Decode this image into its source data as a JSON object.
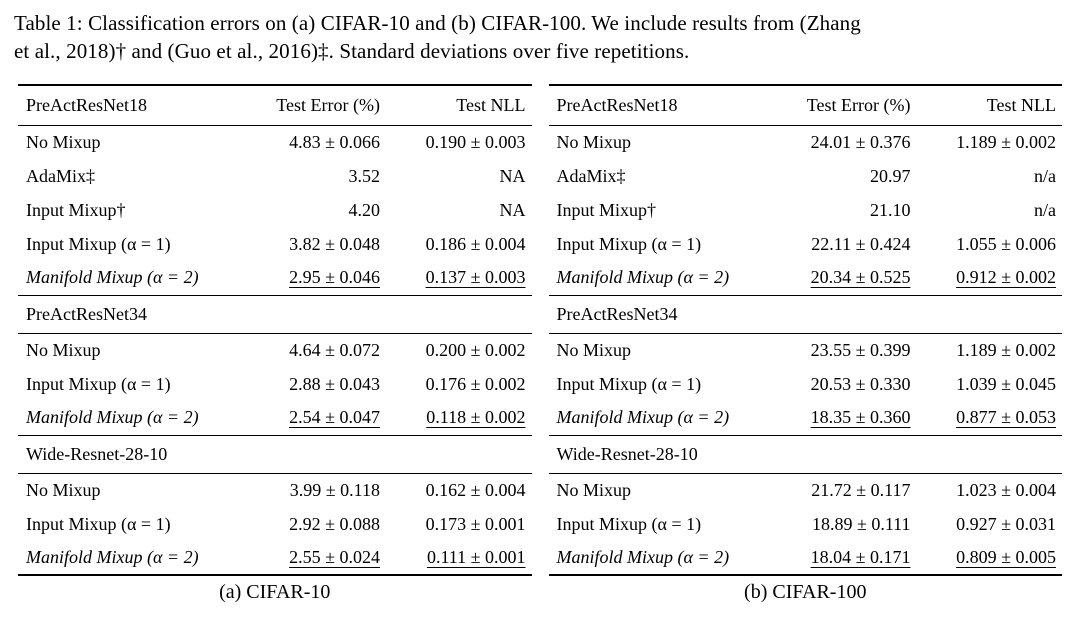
{
  "caption": {
    "line1": "Table 1: Classification errors on (a) CIFAR-10 and (b) CIFAR-100. We include results from (Zhang",
    "line2": "et al., 2018)† and (Guo et al., 2016)‡. Standard deviations over five repetitions."
  },
  "tables": [
    {
      "subcaption": "(a) CIFAR-10",
      "columns": [
        "PreActResNet18",
        "Test Error (%)",
        "Test NLL"
      ],
      "sections": [
        {
          "rows": [
            {
              "method": "No Mixup",
              "error": "4.83 ± 0.066",
              "nll": "0.190 ± 0.003"
            },
            {
              "method": "AdaMix‡",
              "error": "3.52",
              "nll": "NA"
            },
            {
              "method": "Input Mixup†",
              "error": "4.20",
              "nll": "NA"
            },
            {
              "method": "Input Mixup (α = 1)",
              "error": "3.82 ± 0.048",
              "nll": "0.186 ± 0.004"
            },
            {
              "method": "Manifold Mixup (α = 2)",
              "error": "2.95 ± 0.046",
              "nll": "0.137 ± 0.003"
            }
          ]
        },
        {
          "header": "PreActResNet34",
          "rows": [
            {
              "method": "No Mixup",
              "error": "4.64 ± 0.072",
              "nll": "0.200 ± 0.002"
            },
            {
              "method": "Input Mixup (α = 1)",
              "error": "2.88 ± 0.043",
              "nll": "0.176 ± 0.002"
            },
            {
              "method": "Manifold Mixup (α = 2)",
              "error": "2.54 ± 0.047",
              "nll": "0.118 ± 0.002"
            }
          ]
        },
        {
          "header": "Wide-Resnet-28-10",
          "rows": [
            {
              "method": "No Mixup",
              "error": "3.99 ± 0.118",
              "nll": "0.162 ± 0.004"
            },
            {
              "method": "Input Mixup (α = 1)",
              "error": "2.92 ± 0.088",
              "nll": "0.173 ± 0.001"
            },
            {
              "method": "Manifold Mixup (α = 2)",
              "error": "2.55 ± 0.024",
              "nll": "0.111 ± 0.001"
            }
          ]
        }
      ]
    },
    {
      "subcaption": "(b) CIFAR-100",
      "columns": [
        "PreActResNet18",
        "Test Error (%)",
        "Test NLL"
      ],
      "sections": [
        {
          "rows": [
            {
              "method": "No Mixup",
              "error": "24.01 ± 0.376",
              "nll": "1.189 ± 0.002"
            },
            {
              "method": "AdaMix‡",
              "error": "20.97",
              "nll": "n/a"
            },
            {
              "method": "Input Mixup†",
              "error": "21.10",
              "nll": "n/a"
            },
            {
              "method": "Input Mixup (α = 1)",
              "error": "22.11 ± 0.424",
              "nll": "1.055 ± 0.006"
            },
            {
              "method": "Manifold Mixup (α = 2)",
              "error": "20.34 ± 0.525",
              "nll": "0.912 ± 0.002"
            }
          ]
        },
        {
          "header": "PreActResNet34",
          "rows": [
            {
              "method": "No Mixup",
              "error": "23.55 ± 0.399",
              "nll": "1.189 ± 0.002"
            },
            {
              "method": "Input Mixup (α = 1)",
              "error": "20.53 ± 0.330",
              "nll": "1.039 ± 0.045"
            },
            {
              "method": "Manifold Mixup (α = 2)",
              "error": "18.35 ± 0.360",
              "nll": "0.877 ± 0.053"
            }
          ]
        },
        {
          "header": "Wide-Resnet-28-10",
          "rows": [
            {
              "method": "No Mixup",
              "error": "21.72 ± 0.117",
              "nll": "1.023 ± 0.004"
            },
            {
              "method": "Input Mixup (α = 1)",
              "error": "18.89 ± 0.111",
              "nll": "0.927 ± 0.031"
            },
            {
              "method": "Manifold Mixup (α = 2)",
              "error": "18.04 ± 0.171",
              "nll": "0.809 ± 0.005"
            }
          ]
        }
      ]
    }
  ]
}
